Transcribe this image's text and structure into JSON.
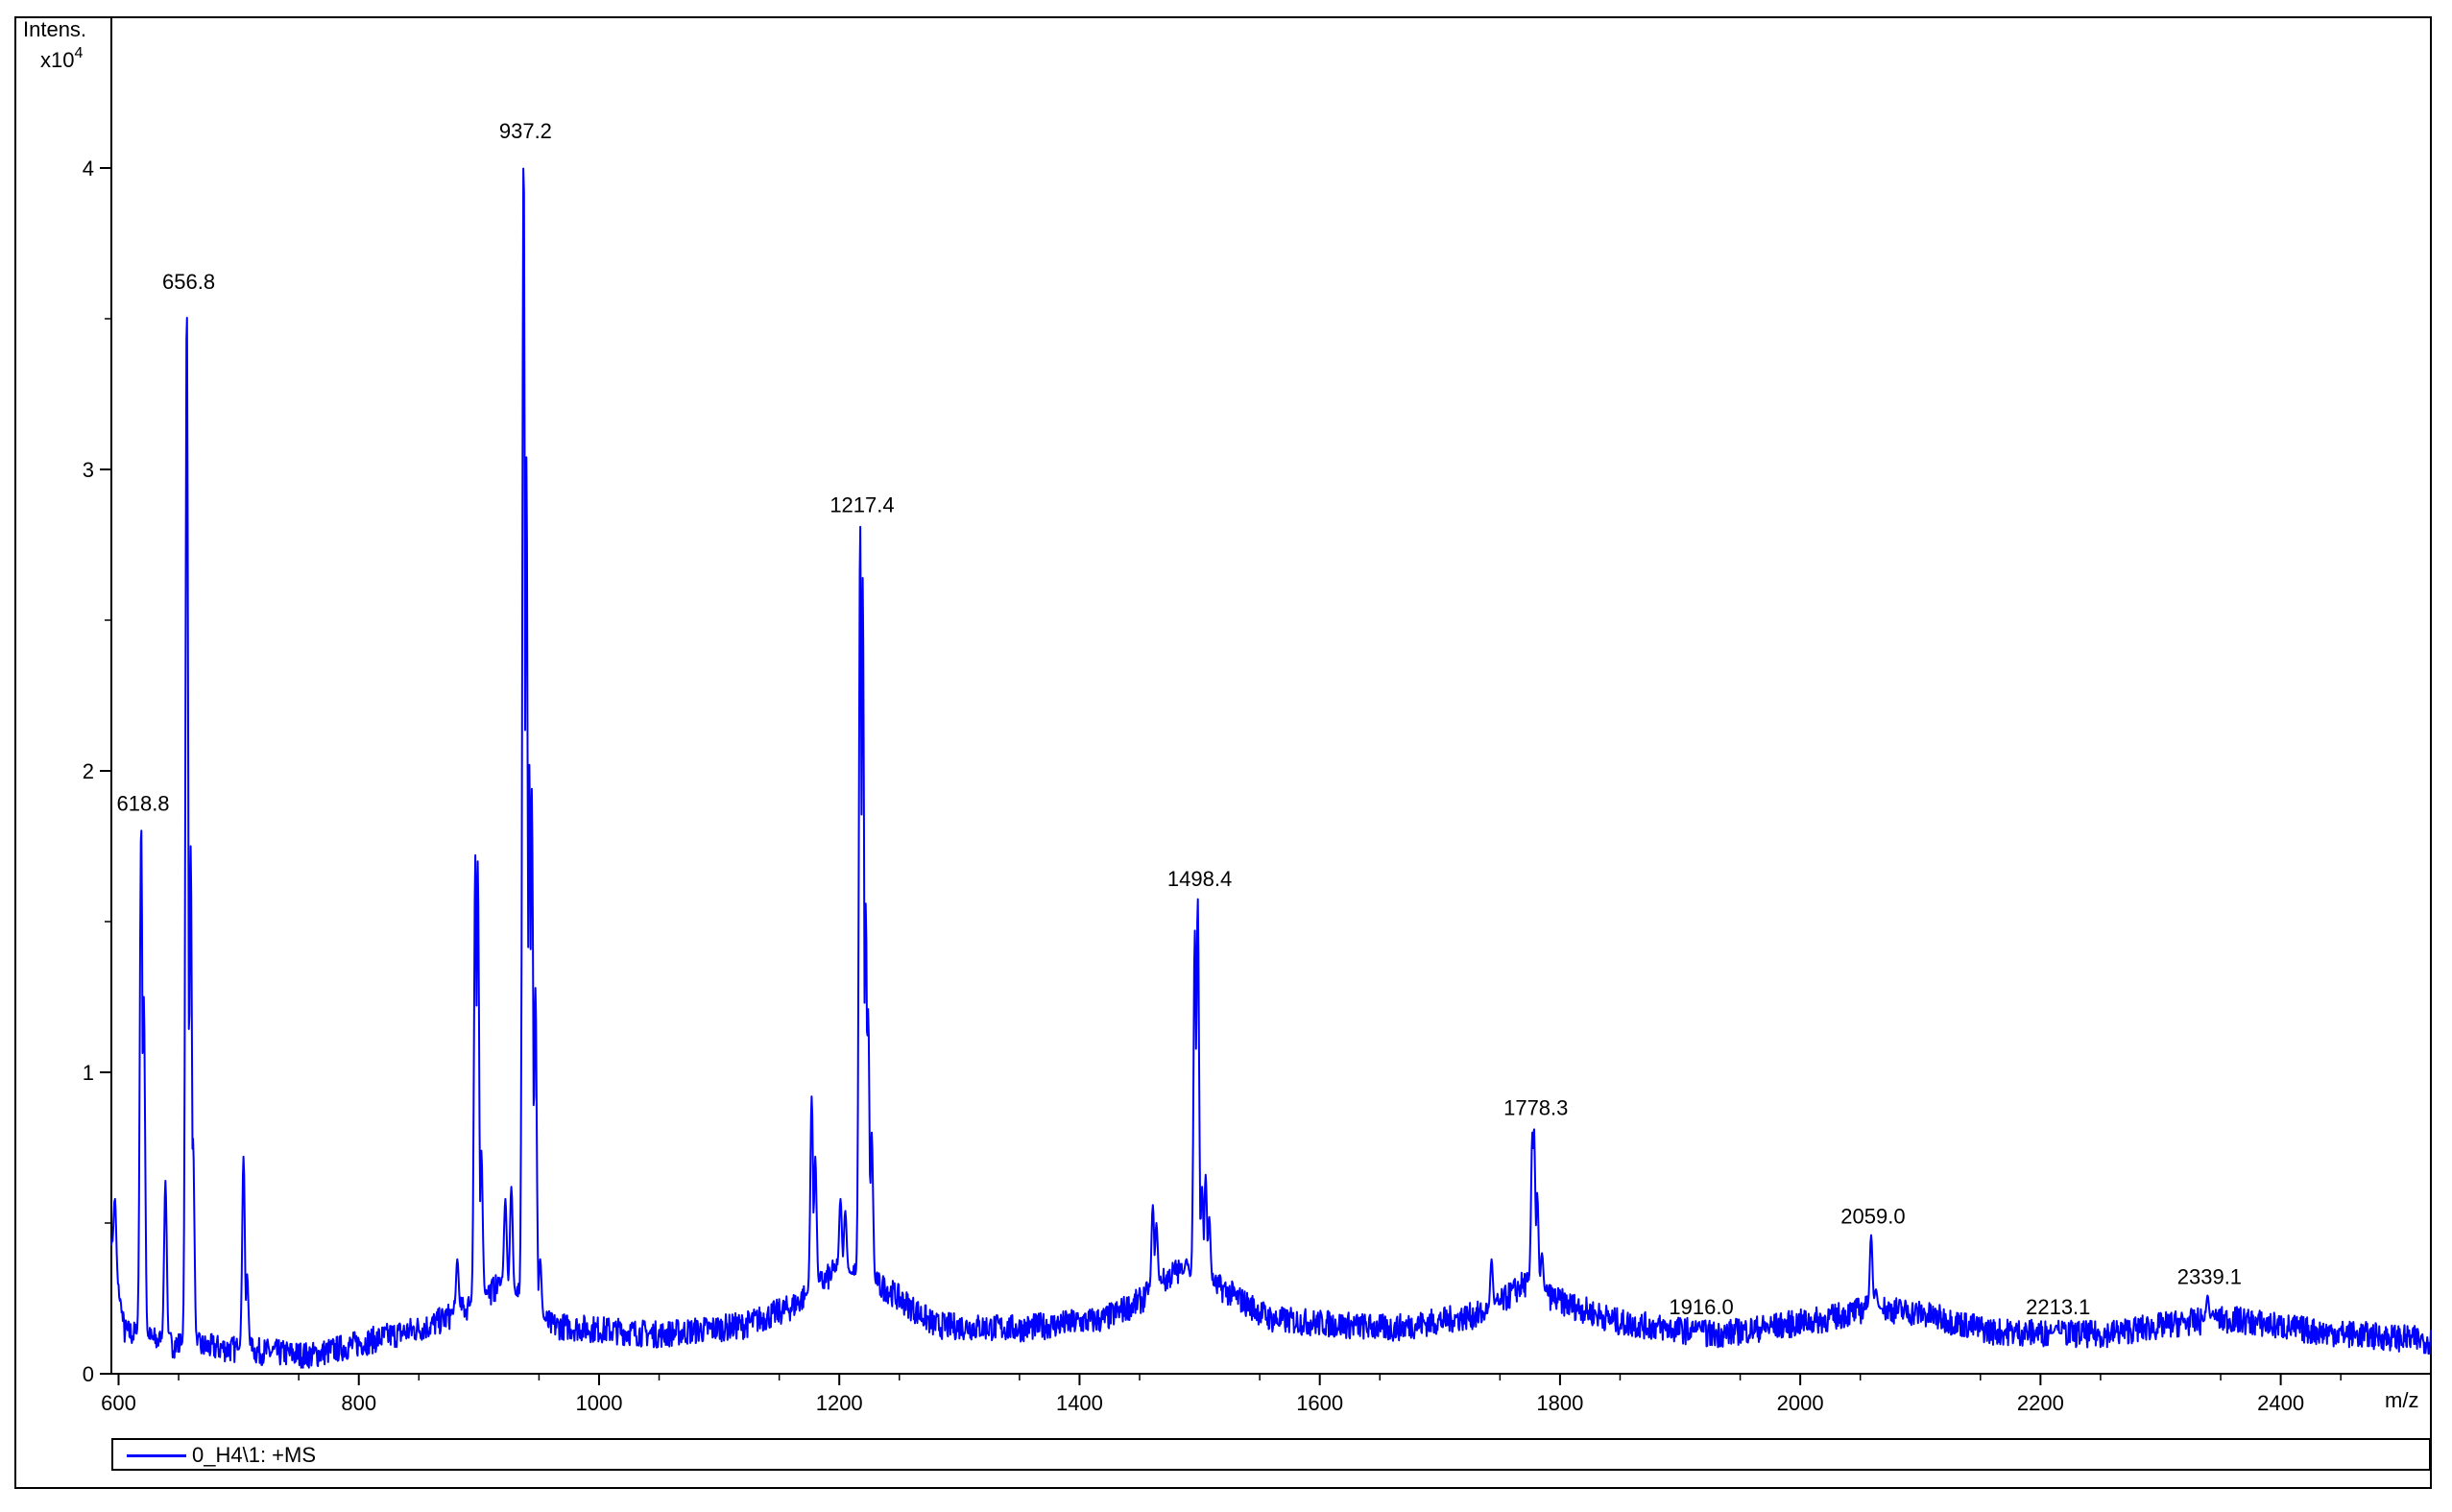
{
  "chart_data": {
    "type": "line",
    "ylabel": "Intens.",
    "yscale_label": "x10",
    "yscale_exp": "4",
    "xlabel": "m/z",
    "xlim": [
      594,
      2525
    ],
    "ylim": [
      0,
      4.5
    ],
    "x_ticks": [
      "600",
      "800",
      "1000",
      "1200",
      "1400",
      "1600",
      "1800",
      "2000",
      "2200",
      "2400"
    ],
    "y_ticks": [
      "0",
      "1",
      "2",
      "3",
      "4"
    ],
    "series": [
      {
        "name": "0_H4\\1: +MS",
        "color": "#0000ff",
        "peaks": [
          {
            "x": 597,
            "y": 0.58
          },
          {
            "x": 618.8,
            "y": 1.83
          },
          {
            "x": 621,
            "y": 1.25
          },
          {
            "x": 639,
            "y": 0.64
          },
          {
            "x": 656.8,
            "y": 3.56
          },
          {
            "x": 660,
            "y": 1.75
          },
          {
            "x": 662,
            "y": 0.78
          },
          {
            "x": 704,
            "y": 0.72
          },
          {
            "x": 707,
            "y": 0.33
          },
          {
            "x": 882,
            "y": 0.38
          },
          {
            "x": 897,
            "y": 1.72
          },
          {
            "x": 899,
            "y": 1.7
          },
          {
            "x": 902,
            "y": 0.74
          },
          {
            "x": 922,
            "y": 0.58
          },
          {
            "x": 927,
            "y": 0.62
          },
          {
            "x": 937.2,
            "y": 4.06
          },
          {
            "x": 939.5,
            "y": 3.04
          },
          {
            "x": 942,
            "y": 2.02
          },
          {
            "x": 944,
            "y": 1.94
          },
          {
            "x": 947,
            "y": 1.28
          },
          {
            "x": 951,
            "y": 0.38
          },
          {
            "x": 1177,
            "y": 0.92
          },
          {
            "x": 1180,
            "y": 0.72
          },
          {
            "x": 1201,
            "y": 0.58
          },
          {
            "x": 1205,
            "y": 0.54
          },
          {
            "x": 1217.4,
            "y": 2.82
          },
          {
            "x": 1219.5,
            "y": 2.64
          },
          {
            "x": 1222,
            "y": 1.56
          },
          {
            "x": 1224,
            "y": 1.21
          },
          {
            "x": 1227,
            "y": 0.8
          },
          {
            "x": 1461,
            "y": 0.56
          },
          {
            "x": 1464,
            "y": 0.5
          },
          {
            "x": 1468,
            "y": 0.3
          },
          {
            "x": 1489,
            "y": 0.38
          },
          {
            "x": 1496,
            "y": 1.47
          },
          {
            "x": 1498.4,
            "y": 1.58
          },
          {
            "x": 1502,
            "y": 0.62
          },
          {
            "x": 1505,
            "y": 0.66
          },
          {
            "x": 1508,
            "y": 0.52
          },
          {
            "x": 1743,
            "y": 0.38
          },
          {
            "x": 1777,
            "y": 0.8
          },
          {
            "x": 1778.3,
            "y": 0.82
          },
          {
            "x": 1781,
            "y": 0.6
          },
          {
            "x": 1785,
            "y": 0.4
          },
          {
            "x": 1916,
            "y": 0.16
          },
          {
            "x": 2059,
            "y": 0.46
          },
          {
            "x": 2063,
            "y": 0.28
          },
          {
            "x": 2213.1,
            "y": 0.16
          },
          {
            "x": 2339.1,
            "y": 0.26
          },
          {
            "x": 2343,
            "y": 0.2
          }
        ],
        "baseline": [
          {
            "x": 594,
            "y": 0.42
          },
          {
            "x": 605,
            "y": 0.14
          },
          {
            "x": 640,
            "y": 0.1
          },
          {
            "x": 700,
            "y": 0.08
          },
          {
            "x": 760,
            "y": 0.06
          },
          {
            "x": 800,
            "y": 0.1
          },
          {
            "x": 860,
            "y": 0.16
          },
          {
            "x": 890,
            "y": 0.22
          },
          {
            "x": 920,
            "y": 0.3
          },
          {
            "x": 960,
            "y": 0.16
          },
          {
            "x": 1050,
            "y": 0.13
          },
          {
            "x": 1120,
            "y": 0.16
          },
          {
            "x": 1160,
            "y": 0.22
          },
          {
            "x": 1200,
            "y": 0.35
          },
          {
            "x": 1240,
            "y": 0.28
          },
          {
            "x": 1280,
            "y": 0.16
          },
          {
            "x": 1350,
            "y": 0.15
          },
          {
            "x": 1420,
            "y": 0.18
          },
          {
            "x": 1450,
            "y": 0.24
          },
          {
            "x": 1480,
            "y": 0.34
          },
          {
            "x": 1520,
            "y": 0.28
          },
          {
            "x": 1560,
            "y": 0.18
          },
          {
            "x": 1660,
            "y": 0.15
          },
          {
            "x": 1740,
            "y": 0.2
          },
          {
            "x": 1770,
            "y": 0.3
          },
          {
            "x": 1800,
            "y": 0.24
          },
          {
            "x": 1850,
            "y": 0.17
          },
          {
            "x": 1930,
            "y": 0.13
          },
          {
            "x": 2020,
            "y": 0.18
          },
          {
            "x": 2060,
            "y": 0.22
          },
          {
            "x": 2100,
            "y": 0.2
          },
          {
            "x": 2160,
            "y": 0.14
          },
          {
            "x": 2250,
            "y": 0.13
          },
          {
            "x": 2320,
            "y": 0.17
          },
          {
            "x": 2360,
            "y": 0.18
          },
          {
            "x": 2430,
            "y": 0.14
          },
          {
            "x": 2525,
            "y": 0.11
          }
        ]
      }
    ],
    "annotations": [
      {
        "text": "618.8",
        "x": 618.8,
        "y": 1.83
      },
      {
        "text": "656.8",
        "x": 656.8,
        "y": 3.56
      },
      {
        "text": "937.2",
        "x": 937.2,
        "y": 4.06
      },
      {
        "text": "1217.4",
        "x": 1217.4,
        "y": 2.82
      },
      {
        "text": "1498.4",
        "x": 1498.4,
        "y": 1.58
      },
      {
        "text": "1778.3",
        "x": 1778.3,
        "y": 0.82
      },
      {
        "text": "1916.0",
        "x": 1916.0,
        "y": 0.16
      },
      {
        "text": "2059.0",
        "x": 2059.0,
        "y": 0.46
      },
      {
        "text": "2213.1",
        "x": 2213.1,
        "y": 0.16
      },
      {
        "text": "2339.1",
        "x": 2339.1,
        "y": 0.26
      }
    ]
  }
}
